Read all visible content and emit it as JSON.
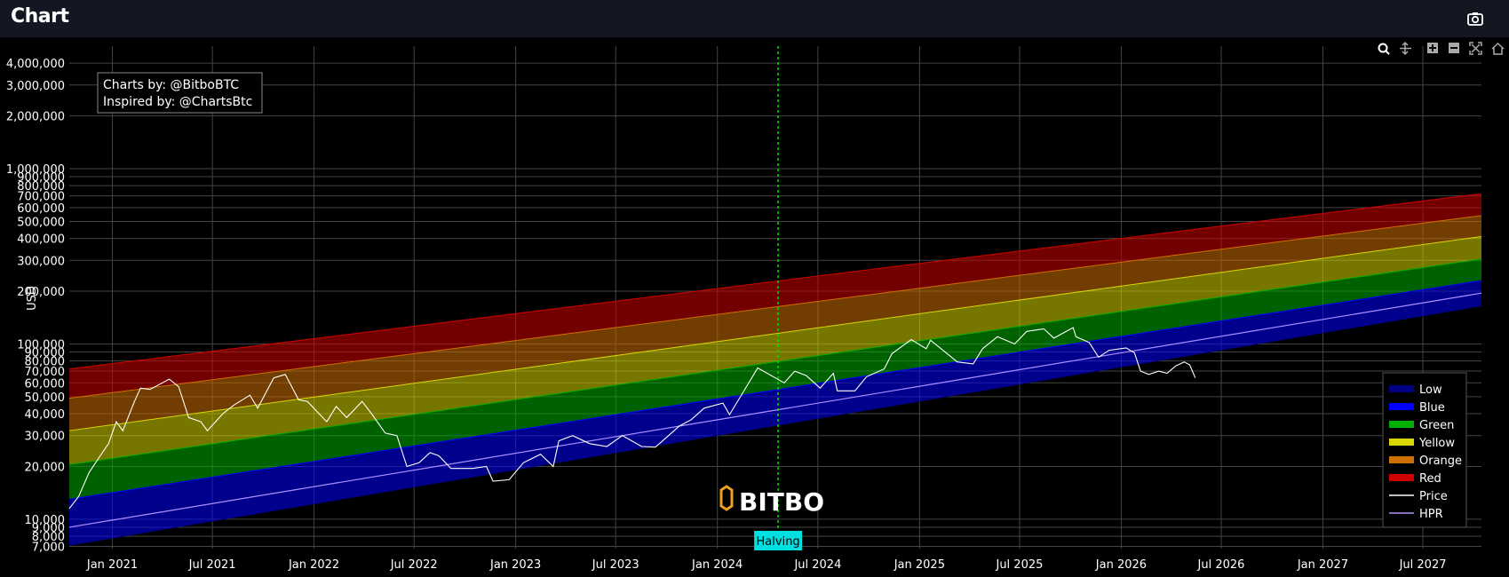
{
  "header": {
    "title": "Chart",
    "camera_icon": "camera-icon"
  },
  "modebar": [
    {
      "name": "zoom-icon",
      "title": "Zoom"
    },
    {
      "name": "pan-icon",
      "title": "Pan"
    },
    {
      "name": "zoom-in-icon",
      "title": "Zoom in"
    },
    {
      "name": "zoom-out-icon",
      "title": "Zoom out"
    },
    {
      "name": "autoscale-icon",
      "title": "Autoscale"
    },
    {
      "name": "home-icon",
      "title": "Reset axes"
    }
  ],
  "annotation": {
    "line1": "Charts by: @BitboBTC",
    "line2": "Inspired by: @ChartsBtc"
  },
  "watermark": "BITBO",
  "halving_label": "Halving",
  "colors": {
    "background": "#000000",
    "header": "#131722",
    "low": "#000080",
    "blue": "#0000ff",
    "green": "#00b000",
    "yellow": "#d8d800",
    "orange": "#d07000",
    "red": "#d00000",
    "price": "#ffffff",
    "hpr": "#b090ff",
    "halving": "#00e000",
    "halving_label_bg": "#00e0e0"
  },
  "chart_data": {
    "type": "line",
    "ylabel": "USD",
    "yscale": "log",
    "ylim": [
      6800,
      5000000
    ],
    "xlim": [
      "2020-10-15",
      "2027-10-15"
    ],
    "y_ticks": [
      "7,000",
      "8,000",
      "9,000",
      "10,000",
      "20,000",
      "30,000",
      "40,000",
      "50,000",
      "60,000",
      "70,000",
      "80,000",
      "90,000",
      "100,000",
      "200,000",
      "300,000",
      "400,000",
      "500,000",
      "600,000",
      "700,000",
      "800,000",
      "900,000",
      "1,000,000",
      "2,000,000",
      "3,000,000",
      "4,000,000"
    ],
    "x_ticks": [
      "Jan 2021",
      "Jul 2021",
      "Jan 2022",
      "Jul 2022",
      "Jan 2023",
      "Jul 2023",
      "Jan 2024",
      "Jul 2024",
      "Jan 2025",
      "Jul 2025",
      "Jan 2026",
      "Jul 2026",
      "Jan 2027",
      "Jul 2027"
    ],
    "halving_date": "2024-04-20",
    "legend": [
      "Low",
      "Blue",
      "Green",
      "Yellow",
      "Orange",
      "Red",
      "Price",
      "HPR"
    ],
    "bands": {
      "dates": [
        "2020-10-15",
        "2027-10-15"
      ],
      "low": [
        7100,
        165000
      ],
      "blue_top": [
        13000,
        230000
      ],
      "green_top": [
        20500,
        305000
      ],
      "yellow_top": [
        32000,
        410000
      ],
      "orange_top": [
        49000,
        540000
      ],
      "red_top": [
        72000,
        720000
      ],
      "hpr": [
        9000,
        195000
      ]
    },
    "series": [
      {
        "name": "Price",
        "x": [
          "2020-10-15",
          "2020-11-01",
          "2020-11-20",
          "2020-12-10",
          "2020-12-25",
          "2021-01-08",
          "2021-01-20",
          "2021-02-10",
          "2021-02-21",
          "2021-03-10",
          "2021-04-14",
          "2021-05-01",
          "2021-05-19",
          "2021-06-10",
          "2021-06-22",
          "2021-07-20",
          "2021-08-10",
          "2021-09-07",
          "2021-09-21",
          "2021-10-20",
          "2021-11-10",
          "2021-12-04",
          "2021-12-20",
          "2022-01-24",
          "2022-02-10",
          "2022-03-01",
          "2022-03-29",
          "2022-04-15",
          "2022-05-10",
          "2022-05-31",
          "2022-06-18",
          "2022-07-10",
          "2022-07-30",
          "2022-08-15",
          "2022-09-06",
          "2022-10-15",
          "2022-11-09",
          "2022-11-21",
          "2022-12-20",
          "2023-01-15",
          "2023-02-15",
          "2023-03-10",
          "2023-03-20",
          "2023-04-14",
          "2023-05-15",
          "2023-06-15",
          "2023-07-13",
          "2023-08-17",
          "2023-09-11",
          "2023-10-24",
          "2023-11-15",
          "2023-12-08",
          "2024-01-11",
          "2024-01-23",
          "2024-02-15",
          "2024-03-14",
          "2024-04-15",
          "2024-05-01",
          "2024-05-20",
          "2024-06-10",
          "2024-07-05",
          "2024-07-29",
          "2024-08-05",
          "2024-09-06",
          "2024-09-27",
          "2024-10-29",
          "2024-11-12",
          "2024-12-17",
          "2025-01-13",
          "2025-01-21",
          "2025-02-28",
          "2025-03-10",
          "2025-04-08",
          "2025-04-25",
          "2025-05-22",
          "2025-06-22",
          "2025-07-14",
          "2025-08-14",
          "2025-09-01",
          "2025-10-06",
          "2025-10-11",
          "2025-11-04",
          "2025-11-21",
          "2025-12-10",
          "2026-01-10",
          "2026-01-25",
          "2026-02-05",
          "2026-02-20",
          "2026-03-10",
          "2026-03-25",
          "2026-04-10",
          "2026-04-25",
          "2026-05-05",
          "2026-05-15"
        ],
        "y": [
          11500,
          13500,
          18500,
          23000,
          27000,
          36000,
          32000,
          47000,
          56000,
          55000,
          63000,
          57000,
          38000,
          36000,
          32000,
          40000,
          45000,
          51000,
          43000,
          64000,
          67000,
          48000,
          47000,
          36000,
          44000,
          38000,
          47000,
          40000,
          31000,
          30000,
          20000,
          21000,
          24000,
          23000,
          19500,
          19500,
          20000,
          16500,
          16800,
          21000,
          23500,
          20000,
          28000,
          30000,
          27000,
          26000,
          30000,
          26000,
          25800,
          34000,
          37000,
          43000,
          46000,
          39500,
          52000,
          73000,
          64000,
          60000,
          70000,
          66000,
          56000,
          68000,
          54000,
          54000,
          65000,
          72000,
          88000,
          106000,
          94000,
          105000,
          84000,
          79000,
          77000,
          94000,
          110000,
          100000,
          118000,
          122000,
          108000,
          124000,
          110000,
          102000,
          84000,
          92000,
          95000,
          89000,
          70000,
          67000,
          70000,
          68000,
          75000,
          79000,
          76000,
          64000
        ]
      }
    ]
  }
}
